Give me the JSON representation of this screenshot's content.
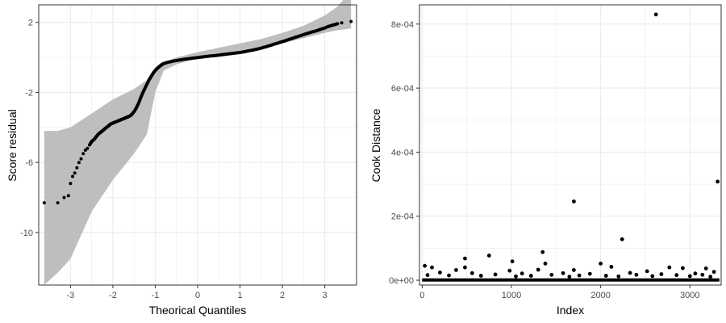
{
  "chart_data": [
    {
      "type": "scatter",
      "subtype": "qq-plot-with-confidence-band",
      "xlabel": "Theorical Quantiles",
      "ylabel": "Score residual",
      "xlim": [
        -3.75,
        3.75
      ],
      "ylim": [
        -13.0,
        3.0
      ],
      "x_ticks": [
        -3,
        -2,
        -1,
        0,
        1,
        2,
        3
      ],
      "x_tick_labels": [
        "-3",
        "-2",
        "-1",
        "0",
        "1",
        "2",
        "3"
      ],
      "y_ticks": [
        2,
        -2,
        -6,
        -10
      ],
      "y_tick_labels": [
        "2",
        "-2",
        "-6",
        "-10"
      ],
      "grid": true,
      "colors": {
        "points": "#000000",
        "band": "#bebebe",
        "grid": "#ebebeb",
        "panel_border": "#333333"
      },
      "band": {
        "x": [
          -3.62,
          -3.3,
          -3.0,
          -2.5,
          -2.0,
          -1.5,
          -1.2,
          -1.0,
          -0.8,
          -0.5,
          0.0,
          0.5,
          1.0,
          1.5,
          2.0,
          2.5,
          3.0,
          3.3,
          3.62
        ],
        "upper": [
          -4.2,
          -4.2,
          -4.0,
          -3.2,
          -2.4,
          -1.8,
          -1.3,
          -0.7,
          -0.3,
          0.0,
          0.3,
          0.55,
          0.8,
          1.05,
          1.4,
          1.8,
          2.4,
          2.9,
          3.8
        ],
        "lower": [
          -13.0,
          -12.3,
          -11.5,
          -8.8,
          -7.0,
          -5.5,
          -4.4,
          -2.0,
          -0.75,
          -0.4,
          -0.05,
          0.15,
          0.35,
          0.55,
          0.8,
          1.1,
          1.4,
          1.55,
          1.65
        ]
      },
      "points": [
        [
          -3.62,
          -8.3
        ],
        [
          -3.3,
          -8.3
        ],
        [
          -3.15,
          -8.0
        ],
        [
          -3.05,
          -7.9
        ],
        [
          -3.0,
          -7.2
        ],
        [
          -2.95,
          -6.8
        ],
        [
          -2.9,
          -6.6
        ],
        [
          -2.85,
          -6.3
        ],
        [
          -2.8,
          -6.0
        ],
        [
          -2.75,
          -5.8
        ],
        [
          -2.7,
          -5.5
        ],
        [
          -2.65,
          -5.3
        ],
        [
          -2.6,
          -5.2
        ],
        [
          -2.55,
          -5.0
        ],
        [
          -2.5,
          -4.8
        ],
        [
          -2.45,
          -4.7
        ],
        [
          -2.4,
          -4.55
        ],
        [
          -2.35,
          -4.4
        ],
        [
          -2.3,
          -4.3
        ],
        [
          -2.25,
          -4.2
        ],
        [
          -2.2,
          -4.1
        ],
        [
          -2.15,
          -4.0
        ],
        [
          -2.1,
          -3.9
        ],
        [
          -2.05,
          -3.8
        ],
        [
          -2.0,
          -3.75
        ],
        [
          -1.95,
          -3.7
        ],
        [
          -1.9,
          -3.65
        ],
        [
          -1.85,
          -3.6
        ],
        [
          -1.8,
          -3.55
        ],
        [
          -1.75,
          -3.5
        ],
        [
          -1.7,
          -3.45
        ],
        [
          -1.65,
          -3.4
        ],
        [
          -1.6,
          -3.35
        ],
        [
          -1.55,
          -3.25
        ],
        [
          -1.5,
          -3.1
        ],
        [
          -1.45,
          -2.9
        ],
        [
          -1.4,
          -2.65
        ],
        [
          -1.35,
          -2.35
        ],
        [
          -1.3,
          -2.05
        ],
        [
          -1.25,
          -1.8
        ],
        [
          -1.2,
          -1.55
        ],
        [
          -1.15,
          -1.3
        ],
        [
          -1.1,
          -1.1
        ],
        [
          -1.05,
          -0.9
        ],
        [
          -1.0,
          -0.75
        ],
        [
          -0.95,
          -0.62
        ],
        [
          -0.9,
          -0.52
        ],
        [
          -0.85,
          -0.42
        ],
        [
          -0.8,
          -0.35
        ],
        [
          -0.7,
          -0.28
        ],
        [
          -0.6,
          -0.22
        ],
        [
          -0.5,
          -0.18
        ],
        [
          -0.4,
          -0.14
        ],
        [
          -0.3,
          -0.1
        ],
        [
          -0.2,
          -0.07
        ],
        [
          -0.1,
          -0.04
        ],
        [
          0.0,
          -0.01
        ],
        [
          0.1,
          0.02
        ],
        [
          0.2,
          0.05
        ],
        [
          0.3,
          0.08
        ],
        [
          0.4,
          0.1
        ],
        [
          0.5,
          0.13
        ],
        [
          0.6,
          0.16
        ],
        [
          0.7,
          0.19
        ],
        [
          0.8,
          0.22
        ],
        [
          0.9,
          0.25
        ],
        [
          1.0,
          0.28
        ],
        [
          1.1,
          0.32
        ],
        [
          1.2,
          0.37
        ],
        [
          1.3,
          0.42
        ],
        [
          1.4,
          0.47
        ],
        [
          1.5,
          0.53
        ],
        [
          1.6,
          0.6
        ],
        [
          1.7,
          0.67
        ],
        [
          1.8,
          0.75
        ],
        [
          1.9,
          0.82
        ],
        [
          2.0,
          0.9
        ],
        [
          2.1,
          0.98
        ],
        [
          2.2,
          1.06
        ],
        [
          2.3,
          1.14
        ],
        [
          2.4,
          1.22
        ],
        [
          2.5,
          1.3
        ],
        [
          2.6,
          1.38
        ],
        [
          2.7,
          1.45
        ],
        [
          2.8,
          1.52
        ],
        [
          2.9,
          1.6
        ],
        [
          3.0,
          1.68
        ],
        [
          3.1,
          1.78
        ],
        [
          3.2,
          1.85
        ],
        [
          3.3,
          1.92
        ],
        [
          3.4,
          1.97
        ],
        [
          3.62,
          2.05
        ]
      ]
    },
    {
      "type": "scatter",
      "xlabel": "Index",
      "ylabel": "Cook Distance",
      "xlim": [
        -30,
        3350
      ],
      "ylim": [
        -1.5e-05,
        0.00086
      ],
      "x_ticks": [
        0,
        1000,
        2000,
        3000
      ],
      "x_tick_labels": [
        "0",
        "1000",
        "2000",
        "3000"
      ],
      "y_ticks": [
        0,
        0.0002,
        0.0004,
        0.0006,
        0.0008
      ],
      "y_tick_labels": [
        "0e+00",
        "2e-04",
        "4e-04",
        "6e-04",
        "8e-04"
      ],
      "grid": true,
      "colors": {
        "points": "#000000",
        "grid": "#ebebeb",
        "panel_border": "#333333"
      },
      "baseline_index_range": [
        0,
        3330
      ],
      "points": [
        [
          2620,
          0.00083
        ],
        [
          3310,
          0.000308
        ],
        [
          1700,
          0.000246
        ],
        [
          2240,
          0.000128
        ],
        [
          1350,
          8.8e-05
        ],
        [
          750,
          7.7e-05
        ],
        [
          480,
          6.8e-05
        ],
        [
          1010,
          5.9e-05
        ],
        [
          1380,
          5.2e-05
        ],
        [
          2000,
          5.2e-05
        ],
        [
          480,
          4e-05
        ],
        [
          30,
          4.5e-05
        ],
        [
          110,
          4e-05
        ],
        [
          2120,
          4.2e-05
        ],
        [
          2770,
          4e-05
        ],
        [
          3180,
          3.7e-05
        ],
        [
          2920,
          3.8e-05
        ],
        [
          1700,
          3.2e-05
        ],
        [
          380,
          3.2e-05
        ],
        [
          980,
          3e-05
        ],
        [
          1300,
          3.3e-05
        ],
        [
          2520,
          2.8e-05
        ],
        [
          3270,
          2.6e-05
        ],
        [
          200,
          2.4e-05
        ],
        [
          560,
          2.2e-05
        ],
        [
          1120,
          2.1e-05
        ],
        [
          1580,
          2.2e-05
        ],
        [
          1880,
          2e-05
        ],
        [
          2330,
          2.3e-05
        ],
        [
          2680,
          1.9e-05
        ],
        [
          3060,
          2.1e-05
        ],
        [
          820,
          1.8e-05
        ],
        [
          1450,
          1.7e-05
        ],
        [
          2400,
          1.7e-05
        ],
        [
          2850,
          1.6e-05
        ],
        [
          3140,
          1.7e-05
        ],
        [
          60,
          1.6e-05
        ],
        [
          300,
          1.5e-05
        ],
        [
          660,
          1.4e-05
        ],
        [
          1220,
          1.4e-05
        ],
        [
          1760,
          1.5e-05
        ],
        [
          2060,
          1.4e-05
        ],
        [
          2580,
          1.3e-05
        ],
        [
          3000,
          1.3e-05
        ],
        [
          1050,
          1.2e-05
        ],
        [
          1650,
          1.1e-05
        ],
        [
          2200,
          1.2e-05
        ],
        [
          3230,
          1.1e-05
        ]
      ]
    }
  ]
}
